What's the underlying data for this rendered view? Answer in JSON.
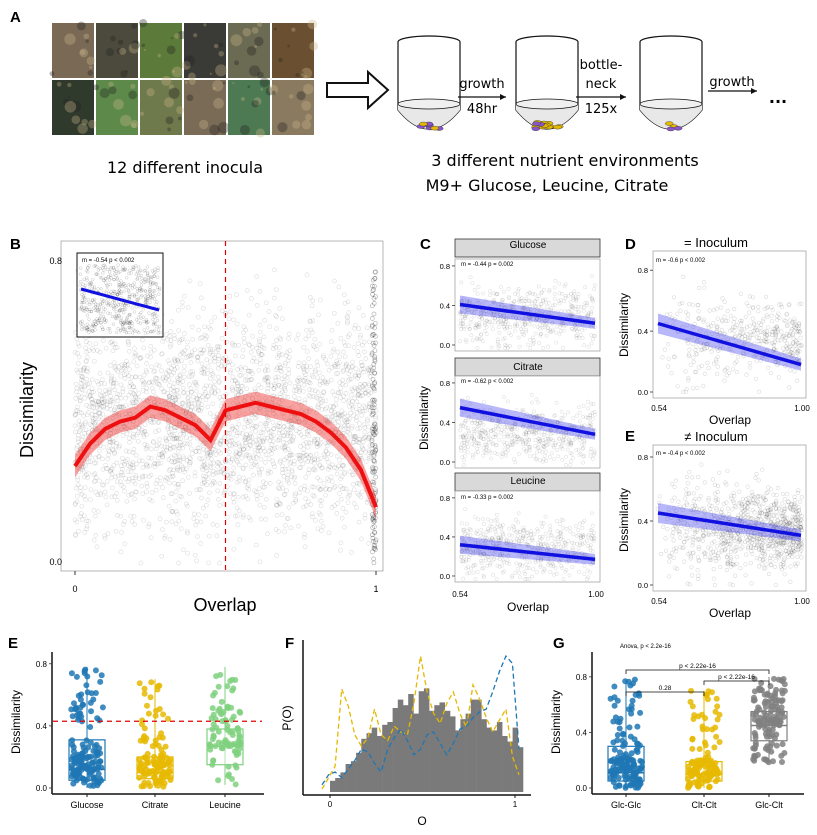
{
  "panel_a": {
    "letter": "A",
    "inocula_label": "12 different inocula",
    "env_line1": "3 different nutrient environments",
    "env_line2": "M9+ Glucose, Leucine, Citrate",
    "step1_top": "growth",
    "step1_bottom": "48hr",
    "step2_top1": "bottle-",
    "step2_top2": "neck",
    "step2_bottom": "125x",
    "step3_top": "growth",
    "ellipsis": "...",
    "photo_colors": [
      "#7a6a55",
      "#4b4a3c",
      "#5c7a3a",
      "#3a3a36",
      "#6b6a52",
      "#6a5030",
      "#2f3a2c",
      "#5d8a4a",
      "#6f7a4c",
      "#7a6b56",
      "#4d7a52",
      "#8a7a60"
    ]
  },
  "chart_data": [
    {
      "id": "B",
      "type": "scatter",
      "letter": "B",
      "xlabel": "Overlap",
      "ylabel": "Dissimilarity",
      "x_ticks": [
        "0",
        "1"
      ],
      "y_ticks": [
        "0.0",
        "0.8"
      ],
      "xlim": [
        0,
        1
      ],
      "ylim": [
        0,
        0.8
      ],
      "vline_x": 0.5,
      "smooth_x": [
        0,
        0.05,
        0.1,
        0.15,
        0.2,
        0.25,
        0.3,
        0.35,
        0.4,
        0.45,
        0.5,
        0.55,
        0.6,
        0.65,
        0.7,
        0.75,
        0.8,
        0.85,
        0.9,
        0.95,
        1.0
      ],
      "smooth_y": [
        0.26,
        0.32,
        0.36,
        0.38,
        0.39,
        0.42,
        0.41,
        0.39,
        0.37,
        0.33,
        0.41,
        0.42,
        0.43,
        0.42,
        0.41,
        0.4,
        0.38,
        0.35,
        0.31,
        0.25,
        0.15
      ],
      "smooth_se": 0.03,
      "inset": {
        "annotation": "m = -0.54   p < 0.002",
        "fit": [
          0.62,
          0.43
        ]
      }
    },
    {
      "id": "C",
      "type": "scatter",
      "letter": "C",
      "xlabel": "Overlap",
      "ylabel": "Dissimilarity",
      "x_ticks": [
        "0.54",
        "1.00"
      ],
      "y_ticks": [
        "0.0",
        "0.4",
        "0.8"
      ],
      "xlim": [
        0.54,
        1
      ],
      "ylim": [
        0,
        0.85
      ],
      "facets": [
        {
          "name": "Glucose",
          "annotation": "m = -0.44   p = 0.002",
          "fit": [
            0.41,
            0.22
          ]
        },
        {
          "name": "Citrate",
          "annotation": "m = -0.62   p < 0.002",
          "fit": [
            0.55,
            0.28
          ]
        },
        {
          "name": "Leucine",
          "annotation": "m = -0.33   p = 0.002",
          "fit": [
            0.32,
            0.17
          ]
        }
      ]
    },
    {
      "id": "D",
      "type": "scatter",
      "letter": "D",
      "title": "= Inoculum",
      "annotation": "m = -0.6   p < 0.002",
      "xlabel": "Overlap",
      "ylabel": "Dissimilarity",
      "x_ticks": [
        "0.54",
        "1.00"
      ],
      "y_ticks": [
        "0.0",
        "0.4",
        "0.8"
      ],
      "xlim": [
        0.54,
        1
      ],
      "ylim": [
        0,
        0.9
      ],
      "fit": [
        0.45,
        0.18
      ]
    },
    {
      "id": "E",
      "type": "scatter",
      "letter": "E",
      "title": "≠ Inoculum",
      "annotation": "m = -0.4   p < 0.002",
      "xlabel": "Overlap",
      "ylabel": "Dissimilarity",
      "x_ticks": [
        "0.54",
        "1.00"
      ],
      "y_ticks": [
        "0.0",
        "0.4",
        "0.8"
      ],
      "xlim": [
        0.54,
        1
      ],
      "ylim": [
        0,
        0.85
      ],
      "fit": [
        0.45,
        0.31
      ]
    },
    {
      "id": "E2",
      "type": "box",
      "letter": "E",
      "ylabel": "Dissimilarity",
      "categories": [
        "Glucose",
        "Citrate",
        "Leucine"
      ],
      "colors": [
        "#1f77b4",
        "#e6b800",
        "#7fd17f"
      ],
      "y_ticks": [
        "0.0",
        "0.4",
        "0.8"
      ],
      "ylim": [
        0,
        0.85
      ],
      "hline_y": 0.43,
      "boxes": [
        {
          "q1": 0.05,
          "median": 0.12,
          "q3": 0.31,
          "lo": 0.0,
          "hi": 0.78
        },
        {
          "q1": 0.06,
          "median": 0.1,
          "q3": 0.2,
          "lo": 0.0,
          "hi": 0.7
        },
        {
          "q1": 0.15,
          "median": 0.27,
          "q3": 0.38,
          "lo": 0.02,
          "hi": 0.78
        }
      ]
    },
    {
      "id": "F",
      "type": "bar",
      "letter": "F",
      "xlabel": "O",
      "ylabel": "P(O)",
      "x_ticks": [
        "0",
        "1"
      ],
      "xlim": [
        0,
        1
      ],
      "hist": [
        0.08,
        0.1,
        0.14,
        0.2,
        0.22,
        0.28,
        0.38,
        0.42,
        0.46,
        0.4,
        0.48,
        0.5,
        0.6,
        0.66,
        0.62,
        0.7,
        0.56,
        0.72,
        0.74,
        0.58,
        0.62,
        0.64,
        0.58,
        0.54,
        0.44,
        0.52,
        0.56,
        0.66,
        0.66,
        0.52,
        0.46,
        0.44,
        0.5,
        0.4,
        0.36,
        0.46,
        0.32
      ],
      "series": [
        {
          "name": "yellow",
          "color": "#e6b800",
          "values": [
            0.02,
            0.1,
            0.18,
            0.72,
            0.6,
            0.4,
            0.32,
            0.38,
            0.58,
            0.4,
            0.36,
            0.46,
            0.42,
            0.4,
            0.62,
            0.95,
            0.7,
            0.55,
            0.48,
            0.62,
            0.7,
            0.55,
            0.45,
            0.75,
            0.65,
            0.52,
            0.42,
            0.5,
            0.58,
            0.25,
            0.12
          ]
        },
        {
          "name": "blue",
          "color": "#1f77b4",
          "values": [
            0.05,
            0.12,
            0.14,
            0.1,
            0.16,
            0.22,
            0.3,
            0.28,
            0.2,
            0.14,
            0.3,
            0.38,
            0.44,
            0.36,
            0.26,
            0.3,
            0.4,
            0.42,
            0.34,
            0.26,
            0.34,
            0.44,
            0.46,
            0.52,
            0.56,
            0.58,
            0.7,
            0.84,
            0.95,
            0.9,
            0.3
          ]
        }
      ]
    },
    {
      "id": "G",
      "type": "box",
      "letter": "G",
      "ylabel": "Dissimilarity",
      "categories": [
        "Glc-Glc",
        "Clt-Clt",
        "Glc-Clt"
      ],
      "colors": [
        "#1f77b4",
        "#e6b800",
        "#808080"
      ],
      "y_ticks": [
        "0.0",
        "0.4",
        "0.8"
      ],
      "ylim": [
        0,
        0.95
      ],
      "anova": "Anova, p < 2.2e-16",
      "comparisons": [
        {
          "label": "p < 2.22e-16",
          "from": 0,
          "to": 2
        },
        {
          "label": "p < 2.22e-16",
          "from": 1,
          "to": 2
        },
        {
          "label": "0.28",
          "from": 0,
          "to": 1
        }
      ],
      "boxes": [
        {
          "q1": 0.05,
          "median": 0.11,
          "q3": 0.3,
          "lo": 0.0,
          "hi": 0.78
        },
        {
          "q1": 0.05,
          "median": 0.1,
          "q3": 0.19,
          "lo": 0.0,
          "hi": 0.7
        },
        {
          "q1": 0.34,
          "median": 0.45,
          "q3": 0.55,
          "lo": 0.18,
          "hi": 0.8
        }
      ]
    }
  ]
}
